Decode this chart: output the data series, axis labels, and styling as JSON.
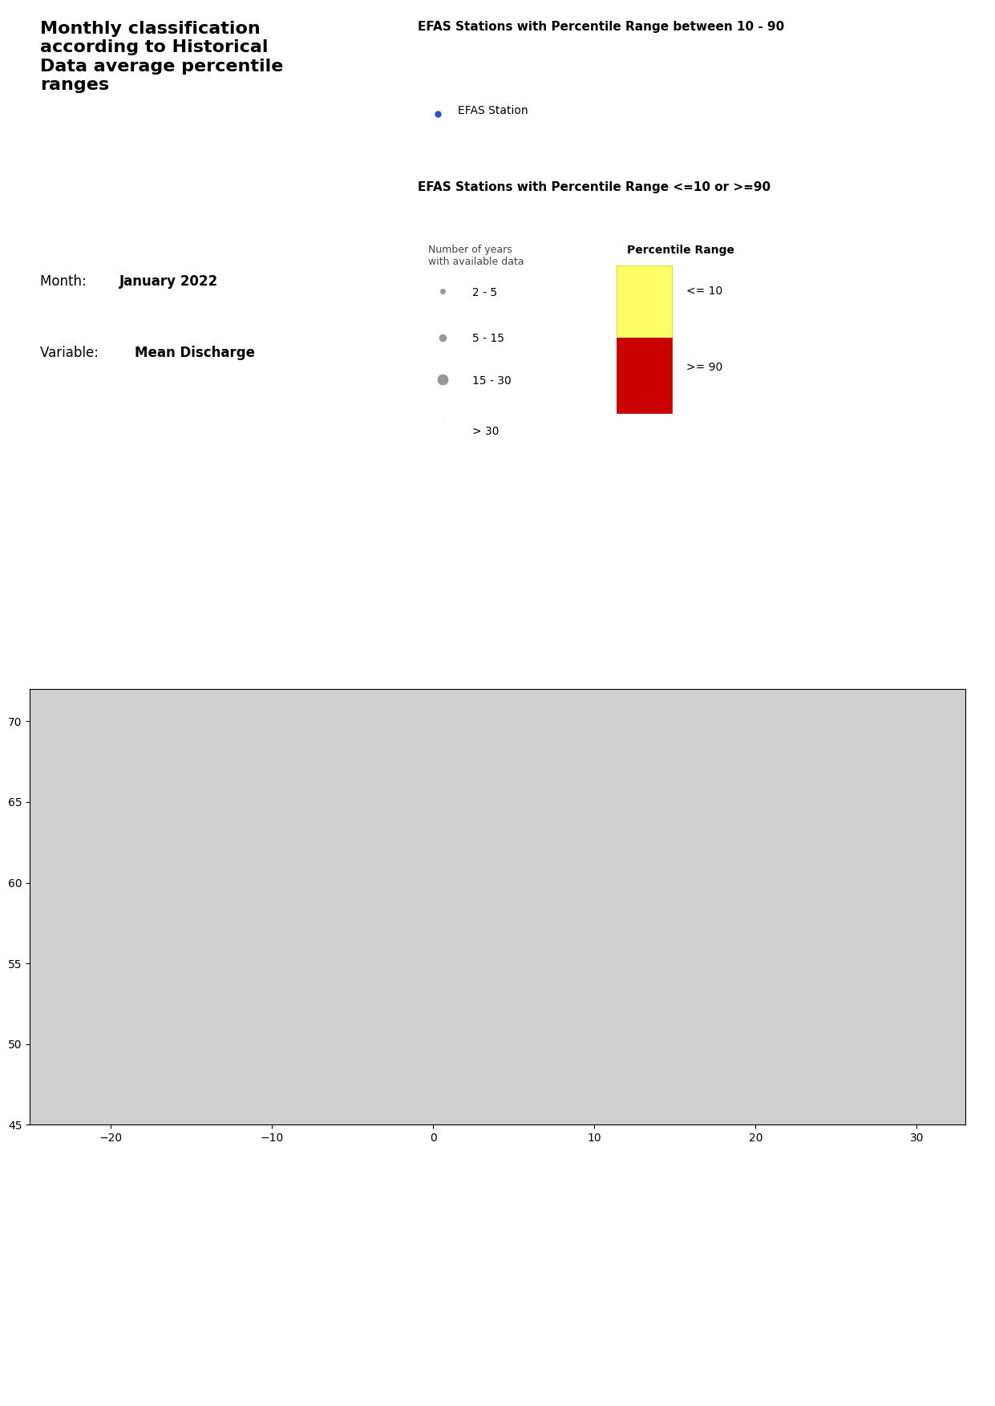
{
  "title_left": "Monthly classification\naccording to Historical\nData average percentile\nranges",
  "month_label": "Month:",
  "month_value": "January 2022",
  "variable_label": "Variable: ",
  "variable_value": "Mean Discharge",
  "legend_title_10_90": "EFAS Stations with Percentile Range between 10 - 90",
  "legend_blue_label": "EFAS Station",
  "legend_title_extreme": "EFAS Stations with Percentile Range <=10 or >=90",
  "legend_size_title": "Number of years\nwith available data",
  "legend_percentile_title": "Percentile Range",
  "size_labels": [
    "2 - 5",
    "5 - 15",
    "15 - 30",
    "> 30"
  ],
  "size_values": [
    30,
    50,
    80,
    120
  ],
  "percentile_colors": {
    "<= 10": "#FFFF66",
    ">= 90": "#CC0000"
  },
  "blue_dot_color": "#2255CC",
  "gray_dot_color": "#999999",
  "map_extent": [
    -25,
    45,
    33,
    72
  ],
  "background_color": "#ffffff",
  "map_border_color": "#000000",
  "title_fontsize": 16,
  "legend_fontsize": 10,
  "header_fontsize": 11
}
